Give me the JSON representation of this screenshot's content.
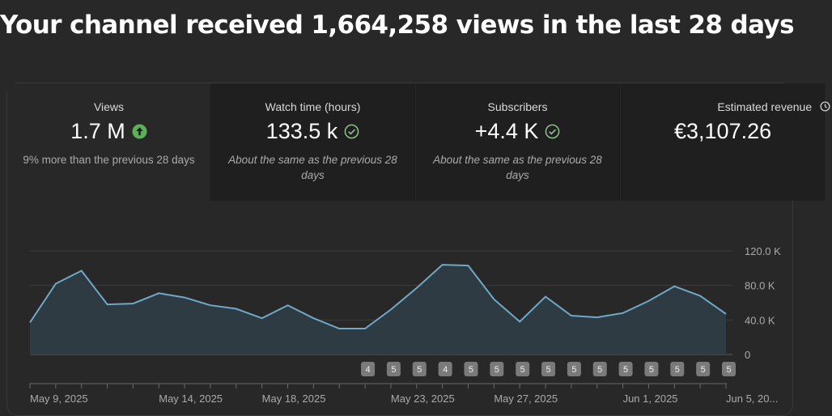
{
  "headline": "Your channel received 1,664,258 views in the last 28 days",
  "metrics": [
    {
      "label": "Views",
      "value": "1.7 M",
      "status": "up-arrow-icon",
      "note": "9% more than the previous 28 days"
    },
    {
      "label": "Watch time (hours)",
      "value": "133.5 k",
      "status": "check-icon",
      "note": "About the same as the previous 28 days"
    },
    {
      "label": "Subscribers",
      "value": "+4.4 K",
      "status": "check-icon",
      "note": "About the same as the previous 28 days"
    },
    {
      "label": "Estimated revenue",
      "value": "€3,107.26",
      "status": "clock-icon",
      "note": ""
    }
  ],
  "colors": {
    "line": "#6fa8c8",
    "area": "#2f3d46",
    "up": "#5fae5b",
    "check": "#8fbf8c"
  },
  "chart_data": {
    "type": "area",
    "y_unit": "thousands",
    "y_ticks": [
      "120.0 K",
      "80.0 K",
      "40.0 K",
      "0"
    ],
    "ylim": [
      0,
      120
    ],
    "values": [
      37,
      82,
      97,
      58,
      59,
      71,
      66,
      57,
      53,
      42,
      57,
      42,
      30,
      30,
      52,
      77,
      104,
      103,
      64,
      38,
      67,
      45,
      43,
      48,
      62,
      79,
      68,
      47
    ],
    "x_labels": [
      "May 9, 2025",
      "May 14, 2025",
      "May 18, 2025",
      "May 23, 2025",
      "May 27, 2025",
      "Jun 1, 2025",
      "Jun 5, 20..."
    ],
    "x_label_days": [
      0,
      5,
      9,
      14,
      18,
      23,
      27
    ],
    "badges": [
      "4",
      "5",
      "5",
      "4",
      "5",
      "5",
      "5",
      "5",
      "5",
      "5",
      "5",
      "5",
      "5",
      "5",
      "5"
    ],
    "badge_days": [
      13,
      14,
      15,
      16,
      17,
      18,
      19,
      20,
      21,
      22,
      23,
      24,
      25,
      26,
      27
    ]
  }
}
